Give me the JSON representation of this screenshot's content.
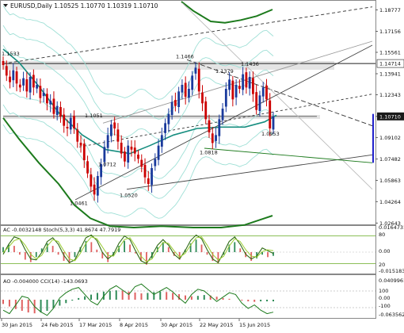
{
  "header": {
    "symbol_line": "EURUSD,Daily  1.10525  1.10770  1.10319  1.10710"
  },
  "subwindow1": {
    "label": "AC -0.0032148   Stoch(5,3,3)  41.8674  47.7919",
    "right_values": [
      "0.0164731",
      "80",
      "0.00",
      "20",
      "-0.015183"
    ]
  },
  "subwindow2": {
    "label": "AO -0.004000   CCI(14)  -143.0693",
    "right_values": [
      "0.0409961",
      "100",
      "0.00",
      "-100",
      "-0.0635628"
    ]
  },
  "colors": {
    "bull_candle": "#1a3a9c",
    "bear_candle": "#cc0000",
    "ma_dark_green": "#1c7a1c",
    "ma_teal": "#178e80",
    "band_light": "#9fe0d6",
    "osc_line_dark": "#2f6a14",
    "osc_line_light": "#9acd32",
    "level_line": "#66aa22",
    "current_price_bg": "#1a1a1a"
  },
  "chart_data": [
    {
      "type": "candlestick",
      "title": "EURUSD,Daily",
      "ohlc": {
        "open": 1.10525,
        "high": 1.1077,
        "low": 1.10319,
        "close": 1.1071
      },
      "ylim": [
        1.026,
        1.194
      ],
      "y_ticks": [
        "1.18777",
        "1.17156",
        "1.15561",
        "1.13941",
        "1.12343",
        "1.10710",
        "1.09102",
        "1.07482",
        "1.05863",
        "1.04264",
        "1.02643"
      ],
      "x_ticks": [
        "30 Jan 2015",
        "24 Feb 2015",
        "17 Mar 2015",
        "8 Apr 2015",
        "30 Apr 2015",
        "22 May 2015",
        "15 Jun 2015"
      ],
      "current_price": "1.10710",
      "marked_price": "1.14714",
      "price_annotations": [
        {
          "label": "1.1533",
          "price": 1.1533
        },
        {
          "label": "1.0461",
          "price": 1.0461
        },
        {
          "label": "1.1051",
          "price": 1.1051
        },
        {
          "label": "1.0712",
          "price": 1.0712
        },
        {
          "label": "1.0520",
          "price": 1.052
        },
        {
          "label": "1.1466",
          "price": 1.1466
        },
        {
          "label": "1.1379",
          "price": 1.1379
        },
        {
          "label": "1.0818",
          "price": 1.0818
        },
        {
          "label": "1.1436",
          "price": 1.1436
        },
        {
          "label": "1.0953",
          "price": 1.0953
        }
      ],
      "close_path": [
        1.146,
        1.138,
        1.133,
        1.142,
        1.132,
        1.129,
        1.136,
        1.126,
        1.137,
        1.129,
        1.131,
        1.121,
        1.125,
        1.117,
        1.119,
        1.109,
        1.115,
        1.107,
        1.1,
        1.098,
        1.106,
        1.098,
        1.088,
        1.085,
        1.074,
        1.064,
        1.054,
        1.048,
        1.062,
        1.071,
        1.084,
        1.093,
        1.101,
        1.098,
        1.088,
        1.079,
        1.073,
        1.085,
        1.082,
        1.079,
        1.075,
        1.069,
        1.061,
        1.056,
        1.068,
        1.075,
        1.085,
        1.093,
        1.102,
        1.109,
        1.118,
        1.115,
        1.126,
        1.131,
        1.122,
        1.128,
        1.138,
        1.144,
        1.126,
        1.117,
        1.105,
        1.095,
        1.087,
        1.093,
        1.105,
        1.113,
        1.128,
        1.135,
        1.12,
        1.131,
        1.128,
        1.139,
        1.129,
        1.137,
        1.124,
        1.112,
        1.123,
        1.129,
        1.12,
        1.098,
        1.107
      ]
    },
    {
      "type": "line",
      "title": "AC / Stoch(5,3,3)",
      "levels": [
        80,
        20
      ],
      "series": [
        {
          "name": "Stoch main",
          "values": [
            40,
            62,
            78,
            74,
            50,
            30,
            28,
            44,
            68,
            76,
            62,
            38,
            22,
            28,
            52,
            76,
            82,
            70,
            44,
            30,
            40,
            64,
            80,
            72,
            48,
            26,
            20,
            38,
            60,
            72,
            60,
            40,
            30,
            48,
            70,
            82,
            74,
            50,
            30,
            22,
            44,
            68,
            78,
            62,
            40,
            30,
            36,
            54,
            48,
            42
          ]
        },
        {
          "name": "Stoch signal",
          "values": [
            44,
            56,
            70,
            74,
            60,
            40,
            30,
            38,
            58,
            72,
            68,
            48,
            30,
            26,
            42,
            64,
            78,
            74,
            56,
            38,
            36,
            54,
            72,
            76,
            58,
            36,
            24,
            30,
            50,
            66,
            64,
            48,
            34,
            42,
            60,
            76,
            78,
            60,
            40,
            28,
            36,
            58,
            74,
            68,
            50,
            36,
            34,
            46,
            50,
            48
          ]
        }
      ],
      "histogram": [
        0.004,
        0.006,
        0.005,
        -0.002,
        -0.006,
        -0.008,
        -0.004,
        0.003,
        0.007,
        0.005,
        -0.002,
        -0.007,
        -0.009,
        -0.004,
        0.004,
        0.009,
        0.008,
        0.002,
        -0.005,
        -0.008,
        -0.003,
        0.005,
        0.009,
        0.006,
        -0.001,
        -0.007,
        -0.01,
        -0.005,
        0.004,
        0.008,
        0.004,
        -0.003,
        -0.006,
        0.002,
        0.007,
        0.01,
        0.006,
        -0.002,
        -0.007,
        -0.009,
        -0.002,
        0.006,
        0.008,
        0.003,
        -0.004,
        -0.007,
        -0.005,
        -0.002,
        -0.004,
        -0.003
      ]
    },
    {
      "type": "line",
      "title": "AO / CCI(14)",
      "levels": [
        100,
        -100
      ],
      "series": [
        {
          "name": "CCI(14)",
          "values": [
            -120,
            -160,
            -60,
            40,
            20,
            -80,
            -140,
            -180,
            -100,
            20,
            80,
            120,
            140,
            60,
            -20,
            -60,
            40,
            120,
            160,
            110,
            60,
            150,
            180,
            120,
            60,
            100,
            140,
            90,
            20,
            -40,
            60,
            120,
            100,
            40,
            -20,
            30,
            80,
            60,
            -40,
            -100,
            -60,
            -120,
            -160,
            -143
          ]
        }
      ],
      "histogram": [
        -0.01,
        -0.016,
        -0.022,
        -0.026,
        -0.03,
        -0.032,
        -0.03,
        -0.026,
        -0.02,
        -0.014,
        -0.008,
        -0.002,
        0.004,
        0.008,
        0.012,
        0.016,
        0.019,
        0.021,
        0.022,
        0.021,
        0.019,
        0.017,
        0.015,
        0.016,
        0.018,
        0.019,
        0.018,
        0.016,
        0.013,
        0.01,
        0.008,
        0.009,
        0.011,
        0.01,
        0.007,
        0.004,
        0.002,
        0.0,
        -0.002,
        -0.004,
        -0.005,
        -0.004,
        -0.004,
        -0.004
      ]
    }
  ]
}
